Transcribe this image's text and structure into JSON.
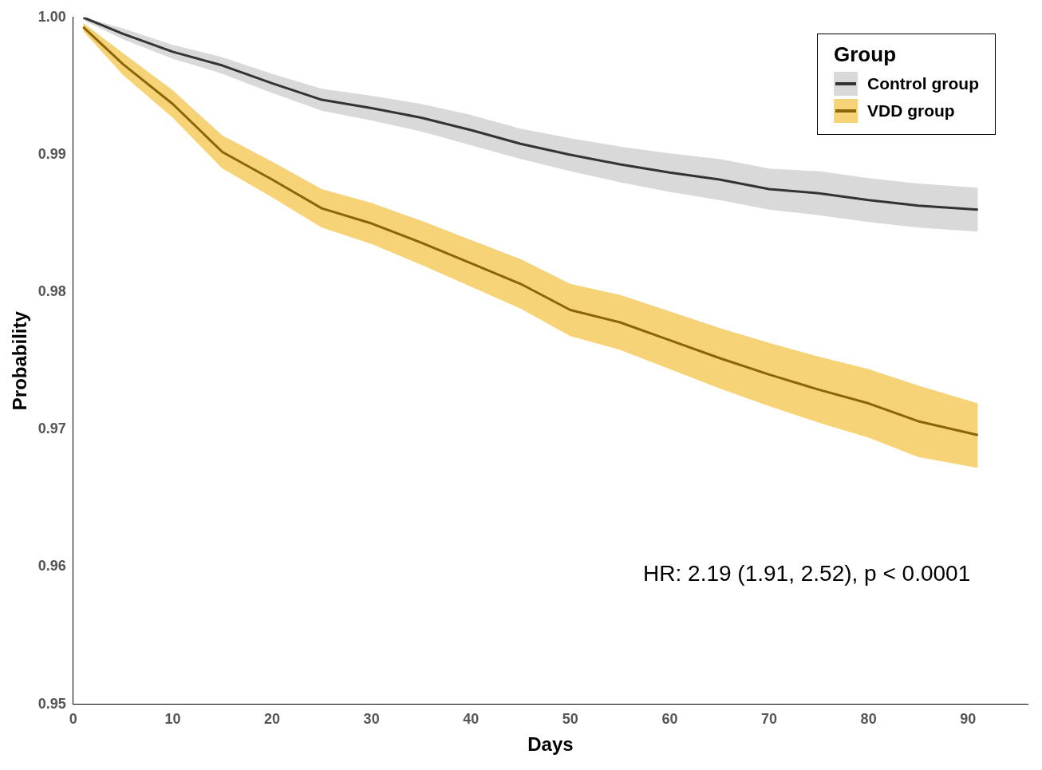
{
  "chart_data": {
    "type": "line",
    "xlabel": "Days",
    "ylabel": "Probability",
    "legend_title": "Group",
    "legend": "top right",
    "grid": false,
    "x": [
      1,
      5,
      10,
      15,
      20,
      25,
      30,
      35,
      40,
      45,
      50,
      55,
      60,
      65,
      70,
      75,
      80,
      85,
      91
    ],
    "xlim": [
      0,
      96
    ],
    "xticks": [
      0,
      10,
      20,
      30,
      40,
      50,
      60,
      70,
      80,
      90
    ],
    "ylim": [
      0.95,
      1.0
    ],
    "yticks": [
      0.95,
      0.96,
      0.97,
      0.98,
      0.99,
      {
        "value": 1.0,
        "label": "1.00"
      }
    ],
    "series": [
      {
        "name": "Control group",
        "color": "#333333",
        "values": [
          1.0,
          0.9988,
          0.9975,
          0.9965,
          0.9952,
          0.994,
          0.9934,
          0.9927,
          0.9918,
          0.9908,
          0.99,
          0.9893,
          0.9887,
          0.9882,
          0.9875,
          0.9872,
          0.9867,
          0.9863,
          0.986
        ],
        "lower": [
          0.9998,
          0.9984,
          0.997,
          0.9959,
          0.9945,
          0.9932,
          0.9925,
          0.9917,
          0.9907,
          0.9897,
          0.9888,
          0.988,
          0.9873,
          0.9867,
          0.986,
          0.9856,
          0.9851,
          0.9847,
          0.9844
        ],
        "upper": [
          1.0,
          0.9992,
          0.998,
          0.9971,
          0.9959,
          0.9948,
          0.9943,
          0.9937,
          0.9929,
          0.9919,
          0.9912,
          0.9906,
          0.9901,
          0.9897,
          0.989,
          0.9888,
          0.9883,
          0.9879,
          0.9876
        ]
      },
      {
        "name": "VDD group",
        "color": "#8b6508",
        "values": [
          0.9993,
          0.9966,
          0.9937,
          0.9902,
          0.9882,
          0.9861,
          0.985,
          0.9836,
          0.9821,
          0.9806,
          0.9787,
          0.9778,
          0.9765,
          0.9752,
          0.974,
          0.9729,
          0.9719,
          0.9706,
          0.9696
        ],
        "lower": [
          0.999,
          0.9958,
          0.9927,
          0.989,
          0.9869,
          0.9847,
          0.9835,
          0.982,
          0.9804,
          0.9788,
          0.9768,
          0.9758,
          0.9744,
          0.973,
          0.9717,
          0.9705,
          0.9694,
          0.968,
          0.9672
        ],
        "upper": [
          0.9996,
          0.9974,
          0.9947,
          0.9914,
          0.9895,
          0.9875,
          0.9865,
          0.9852,
          0.9838,
          0.9824,
          0.9806,
          0.9798,
          0.9786,
          0.9774,
          0.9763,
          0.9753,
          0.9744,
          0.9732,
          0.9719
        ]
      }
    ],
    "annotations": [
      "HR: 2.19 (1.91, 2.52), p < 0.0001"
    ]
  }
}
